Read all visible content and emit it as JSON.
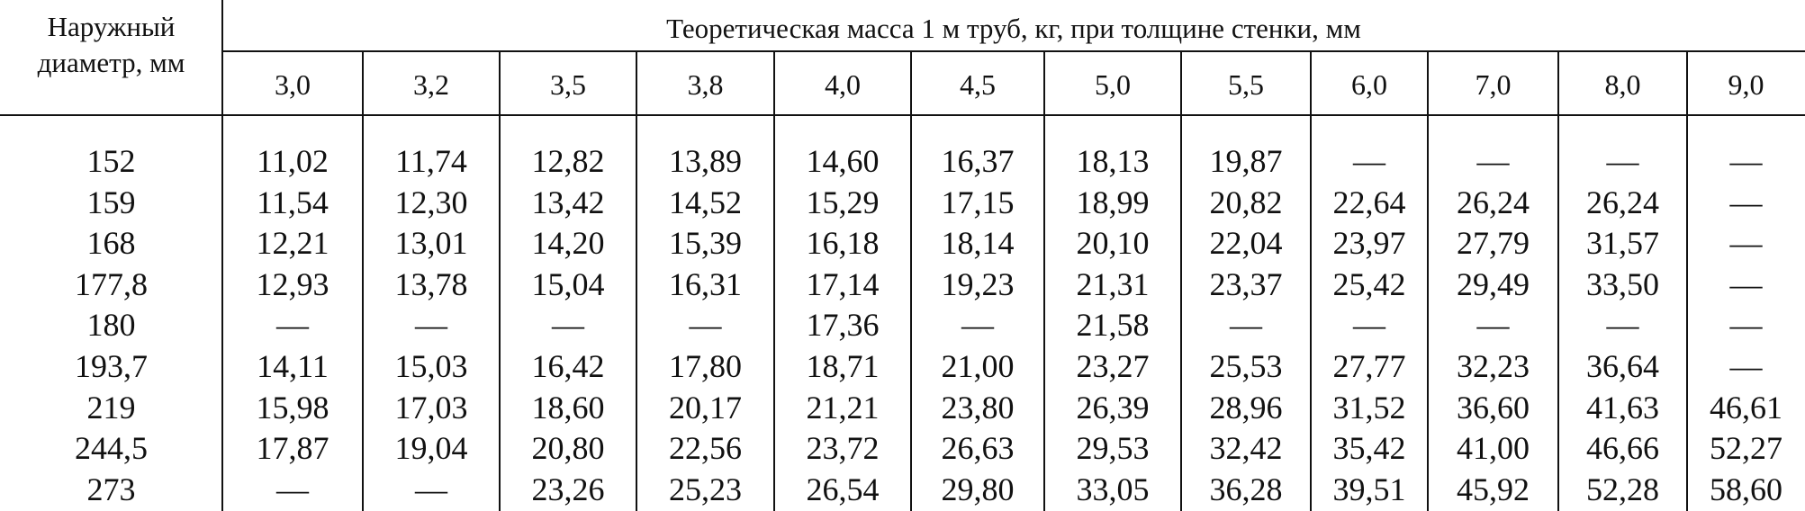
{
  "table": {
    "stub_header": "Наружный диаметр, мм",
    "group_header": "Теоретическая масса 1 м труб, кг, при толщине стенки, мм",
    "columns": [
      "3,0",
      "3,2",
      "3,5",
      "3,8",
      "4,0",
      "4,5",
      "5,0",
      "5,5",
      "6,0",
      "7,0",
      "8,0",
      "9,0"
    ],
    "rows": [
      [
        "152",
        "11,02",
        "11,74",
        "12,82",
        "13,89",
        "14,60",
        "16,37",
        "18,13",
        "19,87",
        "—",
        "—",
        "—",
        "—"
      ],
      [
        "159",
        "11,54",
        "12,30",
        "13,42",
        "14,52",
        "15,29",
        "17,15",
        "18,99",
        "20,82",
        "22,64",
        "26,24",
        "26,24",
        "—"
      ],
      [
        "168",
        "12,21",
        "13,01",
        "14,20",
        "15,39",
        "16,18",
        "18,14",
        "20,10",
        "22,04",
        "23,97",
        "27,79",
        "31,57",
        "—"
      ],
      [
        "177,8",
        "12,93",
        "13,78",
        "15,04",
        "16,31",
        "17,14",
        "19,23",
        "21,31",
        "23,37",
        "25,42",
        "29,49",
        "33,50",
        "—"
      ],
      [
        "180",
        "—",
        "—",
        "—",
        "—",
        "17,36",
        "—",
        "21,58",
        "—",
        "—",
        "—",
        "—",
        "—"
      ],
      [
        "193,7",
        "14,11",
        "15,03",
        "16,42",
        "17,80",
        "18,71",
        "21,00",
        "23,27",
        "25,53",
        "27,77",
        "32,23",
        "36,64",
        "—"
      ],
      [
        "219",
        "15,98",
        "17,03",
        "18,60",
        "20,17",
        "21,21",
        "23,80",
        "26,39",
        "28,96",
        "31,52",
        "36,60",
        "41,63",
        "46,61"
      ],
      [
        "244,5",
        "17,87",
        "19,04",
        "20,80",
        "22,56",
        "23,72",
        "26,63",
        "29,53",
        "32,42",
        "35,42",
        "41,00",
        "46,66",
        "52,27"
      ],
      [
        "273",
        "—",
        "—",
        "23,26",
        "25,23",
        "26,54",
        "29,80",
        "33,05",
        "36,28",
        "39,51",
        "45,92",
        "52,28",
        "58,60"
      ]
    ]
  }
}
